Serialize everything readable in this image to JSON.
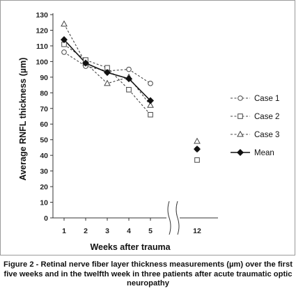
{
  "chart_data": {
    "type": "line",
    "title": "",
    "xlabel": "Weeks after trauma",
    "ylabel": "Average RNFL thickness (µm)",
    "ylim": [
      0,
      130
    ],
    "yticks": [
      0,
      10,
      20,
      30,
      40,
      50,
      60,
      70,
      80,
      90,
      100,
      110,
      120,
      130
    ],
    "x_main": [
      1,
      2,
      3,
      4,
      5
    ],
    "x_break": 12,
    "xticks": [
      "1",
      "2",
      "3",
      "4",
      "5",
      "12"
    ],
    "legend_position": "right",
    "grid": false,
    "series": [
      {
        "name": "Case 1",
        "marker": "circle",
        "dashed": true,
        "values": [
          106,
          97,
          94,
          95,
          86
        ],
        "value_12": 44
      },
      {
        "name": "Case 2",
        "marker": "square",
        "dashed": true,
        "values": [
          111,
          101,
          96,
          82,
          66
        ],
        "value_12": 37
      },
      {
        "name": "Case 3",
        "marker": "triangle",
        "dashed": true,
        "values": [
          124,
          99,
          86,
          90,
          72
        ],
        "value_12": 49
      },
      {
        "name": "Mean",
        "marker": "diamond",
        "dashed": false,
        "values": [
          114,
          99,
          93,
          89,
          75
        ],
        "value_12": 44
      }
    ]
  },
  "caption": "Figure 2 - Retinal nerve fiber layer thickness measurements (µm) over the first five weeks and in the twelfth week in three patients after acute traumatic optic neuropathy"
}
